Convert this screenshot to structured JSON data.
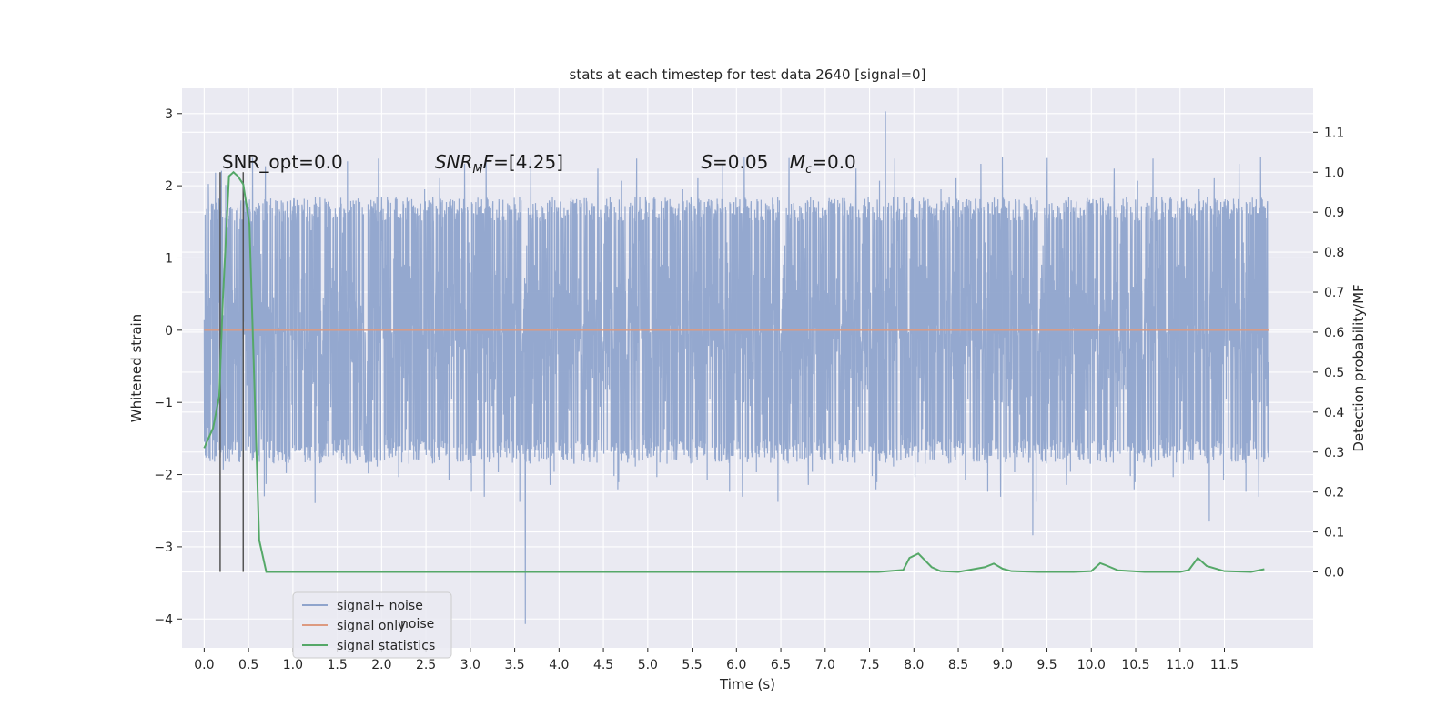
{
  "chart_data": {
    "type": "line",
    "title": "stats at each timestep for test data 2640 [signal=0]",
    "xlabel": "Time (s)",
    "ylabel": "Whitened strain",
    "y2label": "Detection probability/MF",
    "xlim": [
      -0.25,
      12.5
    ],
    "ylim": [
      -4.4,
      3.35
    ],
    "y2lim": [
      -0.19,
      1.21
    ],
    "xticks": [
      0.0,
      0.5,
      1.0,
      1.5,
      2.0,
      2.5,
      3.0,
      3.5,
      4.0,
      4.5,
      5.0,
      5.5,
      6.0,
      6.5,
      7.0,
      7.5,
      8.0,
      8.5,
      9.0,
      9.5,
      10.0,
      10.5,
      11.0,
      11.5
    ],
    "xtick_labels": [
      "0.0",
      "0.5",
      "1.0",
      "1.5",
      "2.0",
      "2.5",
      "3.0",
      "3.5",
      "4.0",
      "4.5",
      "5.0",
      "5.5",
      "6.0",
      "6.5",
      "7.0",
      "7.5",
      "8.0",
      "8.5",
      "9.0",
      "9.5",
      "10.0",
      "10.5",
      "11.0",
      "11.5"
    ],
    "yticks": [
      3,
      2,
      1,
      0,
      -1,
      -2,
      -3,
      -4
    ],
    "ytick_labels": [
      "3",
      "2",
      "1",
      "0",
      "−1",
      "−2",
      "−3",
      "−4"
    ],
    "y2ticks": [
      1.1,
      1.0,
      0.9,
      0.8,
      0.7,
      0.6,
      0.5,
      0.4,
      0.3,
      0.2,
      0.1,
      0.0
    ],
    "y2tick_labels": [
      "1.1",
      "1.0",
      "0.9",
      "0.8",
      "0.7",
      "0.6",
      "0.5",
      "0.4",
      "0.3",
      "0.2",
      "0.1",
      "0.0"
    ],
    "grid": true,
    "legend": {
      "position": "lower-left",
      "entries": [
        {
          "label": "signal+ noise",
          "color": "#8fa4cc"
        },
        {
          "label": "signal only",
          "color": "#dd9a80"
        },
        {
          "label": "signal statistics",
          "color": "#55a868"
        }
      ],
      "hidden_text": "noise"
    },
    "annotations": [
      {
        "text": "SNR_opt=0.0",
        "x": 0.2,
        "y": 2.33
      },
      {
        "text": "SNR_MF=[4.25]",
        "x": 2.6,
        "y": 2.33
      },
      {
        "text": "S=0.05",
        "x": 5.6,
        "y": 2.33
      },
      {
        "text": "M_c=0.0",
        "x": 6.6,
        "y": 2.33
      }
    ],
    "series": [
      {
        "name": "signal+ noise",
        "color": "#8fa4cc",
        "x_range": [
          0.0,
          12.0
        ],
        "sampling_rate_hz": 2048,
        "y_range_typical": [
          -1.8,
          1.8
        ],
        "y_max": 3.03,
        "y_min": -4.07,
        "notable_spikes": [
          {
            "x": 7.68,
            "y": 3.03
          },
          {
            "x": 3.62,
            "y": -4.07
          },
          {
            "x": 9.34,
            "y": -2.84
          },
          {
            "x": 11.33,
            "y": -2.65
          }
        ]
      },
      {
        "name": "signal only",
        "color": "#dd9a80",
        "x": [
          0.0,
          12.0
        ],
        "y": [
          0.0,
          0.0
        ]
      },
      {
        "name": "signal statistics",
        "color": "#55a868",
        "axis": "right",
        "x": [
          0.0,
          0.1,
          0.17,
          0.21,
          0.28,
          0.33,
          0.38,
          0.44,
          0.51,
          0.62,
          0.7,
          1.5,
          2.5,
          3.5,
          4.0,
          4.5,
          5.5,
          6.3,
          7.0,
          7.6,
          7.88,
          7.95,
          8.05,
          8.12,
          8.2,
          8.3,
          8.5,
          8.8,
          8.9,
          9.0,
          9.1,
          9.4,
          9.8,
          10.0,
          10.1,
          10.15,
          10.3,
          10.6,
          11.0,
          11.1,
          11.2,
          11.3,
          11.5,
          11.8,
          11.95
        ],
        "y": [
          0.31,
          0.36,
          0.44,
          0.68,
          0.99,
          1.0,
          0.99,
          0.97,
          0.87,
          0.08,
          0.0,
          0.0,
          0.0,
          0.0,
          0.0,
          0.0,
          0.0,
          0.0,
          0.0,
          0.0,
          0.005,
          0.035,
          0.046,
          0.03,
          0.012,
          0.002,
          0.0,
          0.012,
          0.021,
          0.008,
          0.002,
          0.0,
          0.0,
          0.002,
          0.022,
          0.018,
          0.004,
          0.0,
          0.0,
          0.005,
          0.035,
          0.015,
          0.002,
          0.0,
          0.007
        ]
      }
    ],
    "vertical_lines": [
      {
        "x": 0.18,
        "y2_bottom": 0.0,
        "y2_top": 1.0,
        "color": "#555555"
      },
      {
        "x": 0.44,
        "y2_bottom": 0.0,
        "y2_top": 1.0,
        "color": "#555555"
      }
    ],
    "colors": {
      "plot_background": "#eaeaf2",
      "grid": "#ffffff",
      "text": "#262626"
    }
  }
}
